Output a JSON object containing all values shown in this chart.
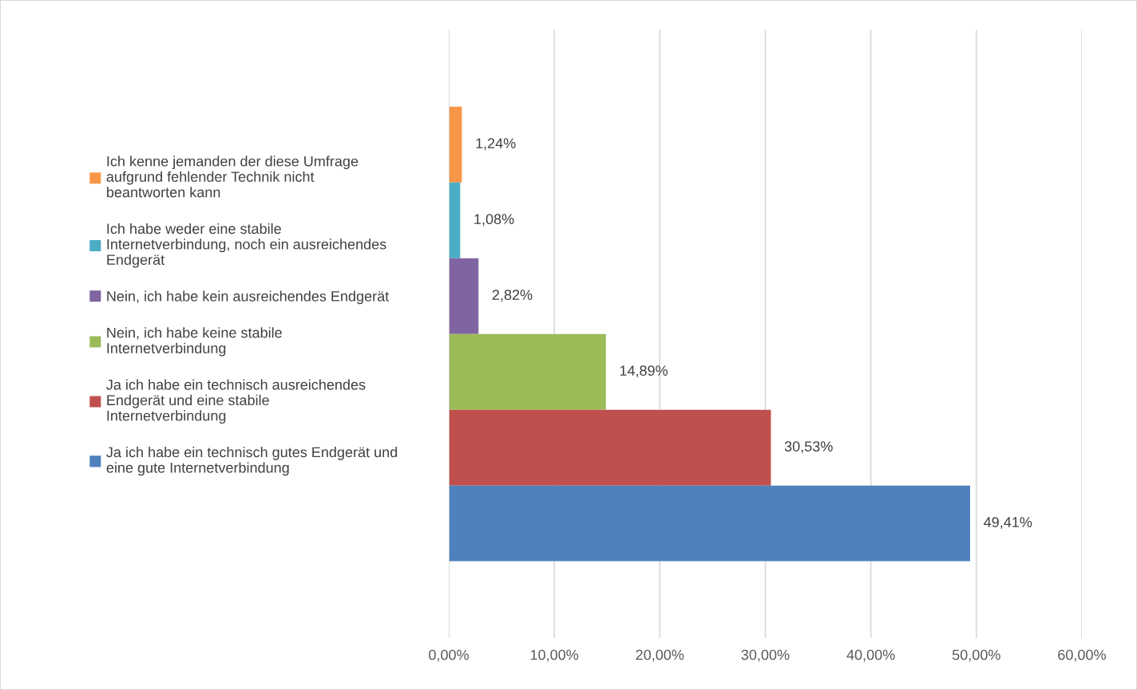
{
  "chart_data": {
    "type": "bar",
    "orientation": "horizontal",
    "categories": [
      null
    ],
    "series": [
      {
        "name": "Ich kenne jemanden der diese Umfrage\naufgrund fehlender Technik nicht\nbeantworten kann",
        "color": "#f79646",
        "values": [
          1.24
        ],
        "value_labels": [
          "1,24%"
        ]
      },
      {
        "name": "Ich habe weder eine stabile\nInternetverbindung, noch ein ausreichendes\nEndgerät",
        "color": "#4bacc6",
        "values": [
          1.08
        ],
        "value_labels": [
          "1,08%"
        ]
      },
      {
        "name": "Nein, ich habe kein ausreichendes Endgerät",
        "color": "#8064a2",
        "values": [
          2.82
        ],
        "value_labels": [
          "2,82%"
        ]
      },
      {
        "name": "Nein, ich habe keine stabile\nInternetverbindung",
        "color": "#9bbb59",
        "values": [
          14.89
        ],
        "value_labels": [
          "14,89%"
        ]
      },
      {
        "name": "Ja ich habe ein technisch ausreichendes\nEndgerät und eine stabile\nInternetverbindung",
        "color": "#c0504d",
        "values": [
          30.53
        ],
        "value_labels": [
          "30,53%"
        ]
      },
      {
        "name": "Ja ich habe ein technisch gutes Endgerät und\neine gute Internetverbindung",
        "color": "#4f81bd",
        "values": [
          49.41
        ],
        "value_labels": [
          "49,41%"
        ]
      }
    ],
    "xlim": [
      0,
      60
    ],
    "xticks": [
      {
        "value": 0,
        "label": "0,00%"
      },
      {
        "value": 10,
        "label": "10,00%"
      },
      {
        "value": 20,
        "label": "20,00%"
      },
      {
        "value": 30,
        "label": "30,00%"
      },
      {
        "value": 40,
        "label": "40,00%"
      },
      {
        "value": 50,
        "label": "50,00%"
      },
      {
        "value": 60,
        "label": "60,00%"
      }
    ],
    "grid": "x",
    "legend": "left"
  }
}
